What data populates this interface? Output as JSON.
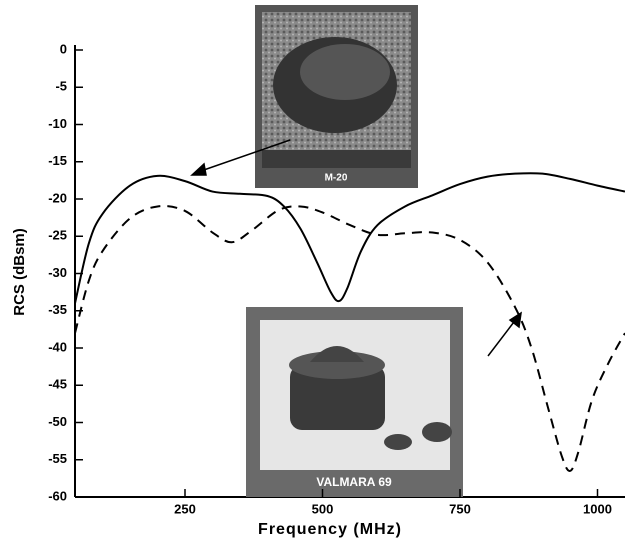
{
  "chart_data": {
    "type": "line",
    "xlabel": "Frequency (MHz)",
    "ylabel": "RCS (dBsm)",
    "xlim": [
      50,
      1050
    ],
    "ylim": [
      -60,
      0
    ],
    "xticks": [
      250,
      500,
      750,
      1000
    ],
    "yticks": [
      0,
      -5,
      -10,
      -15,
      -20,
      -25,
      -30,
      -35,
      -40,
      -45,
      -50,
      -55,
      -60
    ],
    "series": [
      {
        "color": "#000000",
        "dashed": false,
        "x": [
          50,
          75,
          100,
          150,
          200,
          250,
          300,
          350,
          400,
          430,
          460,
          490,
          515,
          530,
          545,
          570,
          600,
          650,
          700,
          750,
          800,
          850,
          900,
          950,
          1000,
          1050
        ],
        "values": [
          -34,
          -26,
          -22,
          -18.2,
          -16.9,
          -17.6,
          -19,
          -19.3,
          -19.6,
          -21,
          -24,
          -28.5,
          -32.5,
          -33.7,
          -32,
          -27,
          -23.5,
          -21,
          -19.5,
          -18,
          -17,
          -16.6,
          -16.6,
          -17.3,
          -18.2,
          -19
        ]
      },
      {
        "color": "#000000",
        "dashed": true,
        "x": [
          50,
          75,
          100,
          150,
          200,
          250,
          300,
          335,
          370,
          420,
          460,
          500,
          550,
          600,
          650,
          700,
          750,
          800,
          850,
          880,
          910,
          935,
          950,
          965,
          990,
          1020,
          1050
        ],
        "values": [
          -38,
          -31,
          -27,
          -22.6,
          -21,
          -21.6,
          -24.5,
          -25.8,
          -24.3,
          -21.5,
          -21,
          -21.8,
          -23.5,
          -24.8,
          -24.6,
          -24.5,
          -25.5,
          -28.5,
          -34.5,
          -40,
          -48,
          -54.5,
          -56.5,
          -54,
          -47,
          -42,
          -38
        ]
      }
    ],
    "annotations": [
      "M-20",
      "VALMARA 69"
    ]
  }
}
